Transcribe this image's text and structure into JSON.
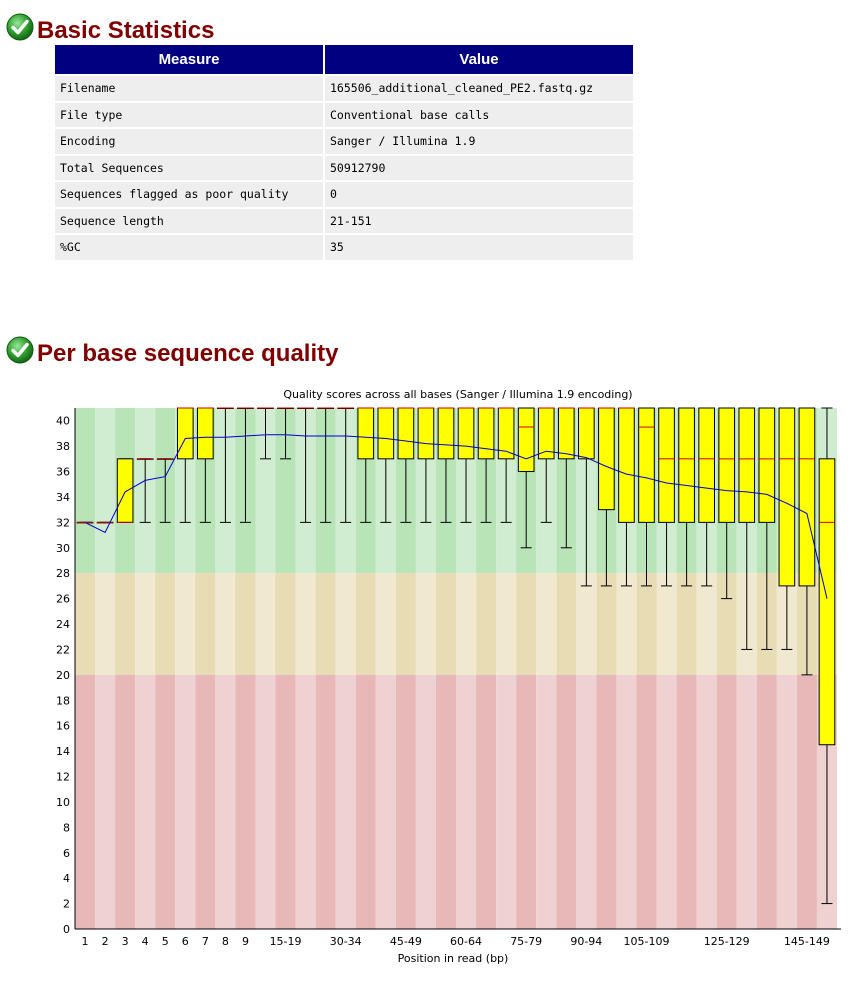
{
  "basic_statistics": {
    "title": "Basic Statistics",
    "headers": [
      "Measure",
      "Value"
    ],
    "rows": [
      [
        "Filename",
        "165506_additional_cleaned_PE2.fastq.gz"
      ],
      [
        "File type",
        "Conventional base calls"
      ],
      [
        "Encoding",
        "Sanger / Illumina 1.9"
      ],
      [
        "Total Sequences",
        "50912790"
      ],
      [
        "Sequences flagged as poor quality",
        "0"
      ],
      [
        "Sequence length",
        "21-151"
      ],
      [
        "%GC",
        "35"
      ]
    ]
  },
  "per_base_quality": {
    "title": "Per base sequence quality"
  },
  "icons": {
    "status": "pass-check-icon",
    "status_color": "#2e9e2e"
  },
  "chart_data": {
    "type": "box",
    "title": "Quality scores across all bases (Sanger / Illumina 1.9 encoding)",
    "xlabel": "Position in read (bp)",
    "ylabel": "",
    "ylim": [
      0,
      41
    ],
    "yticks": [
      0,
      2,
      4,
      6,
      8,
      10,
      12,
      14,
      16,
      18,
      20,
      22,
      24,
      26,
      28,
      30,
      32,
      34,
      36,
      38,
      40
    ],
    "categories": [
      "1",
      "2",
      "3",
      "4",
      "5",
      "6",
      "7",
      "8",
      "9",
      "10-14",
      "15-19",
      "20-24",
      "25-29",
      "30-34",
      "35-39",
      "40-44",
      "45-49",
      "50-54",
      "55-59",
      "60-64",
      "65-69",
      "70-74",
      "75-79",
      "80-84",
      "85-89",
      "90-94",
      "95-99",
      "100-104",
      "105-109",
      "110-114",
      "115-119",
      "120-124",
      "125-129",
      "130-134",
      "135-139",
      "140-144",
      "145-149",
      "150-151"
    ],
    "x_tick_labels": [
      "1",
      "2",
      "3",
      "4",
      "5",
      "6",
      "7",
      "8",
      "9",
      "15-19",
      "30-34",
      "45-49",
      "60-64",
      "75-79",
      "90-94",
      "105-109",
      "125-129",
      "145-149"
    ],
    "box_stats": [
      {
        "whisker_low": 32,
        "q1": 32,
        "median": 32,
        "q3": 32,
        "whisker_high": 32
      },
      {
        "whisker_low": 32,
        "q1": 32,
        "median": 32,
        "q3": 32,
        "whisker_high": 32
      },
      {
        "whisker_low": 32,
        "q1": 32,
        "median": 32,
        "q3": 37,
        "whisker_high": 37
      },
      {
        "whisker_low": 32,
        "q1": 37,
        "median": 37,
        "q3": 37,
        "whisker_high": 37
      },
      {
        "whisker_low": 32,
        "q1": 37,
        "median": 37,
        "q3": 37,
        "whisker_high": 37
      },
      {
        "whisker_low": 32,
        "q1": 37,
        "median": 41,
        "q3": 41,
        "whisker_high": 41
      },
      {
        "whisker_low": 32,
        "q1": 37,
        "median": 41,
        "q3": 41,
        "whisker_high": 41
      },
      {
        "whisker_low": 32,
        "q1": 41,
        "median": 41,
        "q3": 41,
        "whisker_high": 41
      },
      {
        "whisker_low": 32,
        "q1": 41,
        "median": 41,
        "q3": 41,
        "whisker_high": 41
      },
      {
        "whisker_low": 37,
        "q1": 41,
        "median": 41,
        "q3": 41,
        "whisker_high": 41
      },
      {
        "whisker_low": 37,
        "q1": 41,
        "median": 41,
        "q3": 41,
        "whisker_high": 41
      },
      {
        "whisker_low": 32,
        "q1": 41,
        "median": 41,
        "q3": 41,
        "whisker_high": 41
      },
      {
        "whisker_low": 32,
        "q1": 41,
        "median": 41,
        "q3": 41,
        "whisker_high": 41
      },
      {
        "whisker_low": 32,
        "q1": 41,
        "median": 41,
        "q3": 41,
        "whisker_high": 41
      },
      {
        "whisker_low": 32,
        "q1": 37,
        "median": 41,
        "q3": 41,
        "whisker_high": 41
      },
      {
        "whisker_low": 32,
        "q1": 37,
        "median": 41,
        "q3": 41,
        "whisker_high": 41
      },
      {
        "whisker_low": 32,
        "q1": 37,
        "median": 41,
        "q3": 41,
        "whisker_high": 41
      },
      {
        "whisker_low": 32,
        "q1": 37,
        "median": 41,
        "q3": 41,
        "whisker_high": 41
      },
      {
        "whisker_low": 32,
        "q1": 37,
        "median": 41,
        "q3": 41,
        "whisker_high": 41
      },
      {
        "whisker_low": 32,
        "q1": 37,
        "median": 41,
        "q3": 41,
        "whisker_high": 41
      },
      {
        "whisker_low": 32,
        "q1": 37,
        "median": 41,
        "q3": 41,
        "whisker_high": 41
      },
      {
        "whisker_low": 32,
        "q1": 37,
        "median": 41,
        "q3": 41,
        "whisker_high": 41
      },
      {
        "whisker_low": 30,
        "q1": 36,
        "median": 39.5,
        "q3": 41,
        "whisker_high": 41
      },
      {
        "whisker_low": 32,
        "q1": 37,
        "median": 41,
        "q3": 41,
        "whisker_high": 41
      },
      {
        "whisker_low": 30,
        "q1": 37,
        "median": 41,
        "q3": 41,
        "whisker_high": 41
      },
      {
        "whisker_low": 27,
        "q1": 37,
        "median": 41,
        "q3": 41,
        "whisker_high": 41
      },
      {
        "whisker_low": 27,
        "q1": 33,
        "median": 41,
        "q3": 41,
        "whisker_high": 41
      },
      {
        "whisker_low": 27,
        "q1": 32,
        "median": 41,
        "q3": 41,
        "whisker_high": 41
      },
      {
        "whisker_low": 27,
        "q1": 32,
        "median": 39.5,
        "q3": 41,
        "whisker_high": 41
      },
      {
        "whisker_low": 27,
        "q1": 32,
        "median": 37,
        "q3": 41,
        "whisker_high": 41
      },
      {
        "whisker_low": 27,
        "q1": 32,
        "median": 37,
        "q3": 41,
        "whisker_high": 41
      },
      {
        "whisker_low": 27,
        "q1": 32,
        "median": 37,
        "q3": 41,
        "whisker_high": 41
      },
      {
        "whisker_low": 26,
        "q1": 32,
        "median": 37,
        "q3": 41,
        "whisker_high": 41
      },
      {
        "whisker_low": 22,
        "q1": 32,
        "median": 37,
        "q3": 41,
        "whisker_high": 41
      },
      {
        "whisker_low": 22,
        "q1": 32,
        "median": 37,
        "q3": 41,
        "whisker_high": 41
      },
      {
        "whisker_low": 22,
        "q1": 27,
        "median": 37,
        "q3": 41,
        "whisker_high": 41
      },
      {
        "whisker_low": 20,
        "q1": 27,
        "median": 37,
        "q3": 41,
        "whisker_high": 41
      },
      {
        "whisker_low": 2,
        "q1": 14.5,
        "median": 32,
        "q3": 37,
        "whisker_high": 41
      }
    ],
    "series": [
      {
        "type": "line",
        "values": [
          32,
          31.2,
          34.4,
          35.3,
          35.6,
          38.6,
          38.7,
          38.7,
          38.8,
          38.9,
          38.9,
          38.8,
          38.8,
          38.8,
          38.7,
          38.6,
          38.4,
          38.2,
          38.1,
          38.0,
          37.8,
          37.6,
          37.0,
          37.6,
          37.4,
          37.1,
          36.4,
          35.8,
          35.5,
          35.1,
          34.9,
          34.7,
          34.5,
          34.4,
          34.2,
          33.5,
          32.7,
          26.0
        ]
      }
    ],
    "zones": [
      {
        "from": 28,
        "to": 41,
        "color": "#b8e4b8"
      },
      {
        "from": 20,
        "to": 28,
        "color": "#e8dcb5"
      },
      {
        "from": 0,
        "to": 20,
        "color": "#e8b8b8"
      }
    ],
    "colors": {
      "box_fill": "#ffff00",
      "median": "#cc0000",
      "mean_line": "#0000cc",
      "whisker": "#000000"
    }
  }
}
